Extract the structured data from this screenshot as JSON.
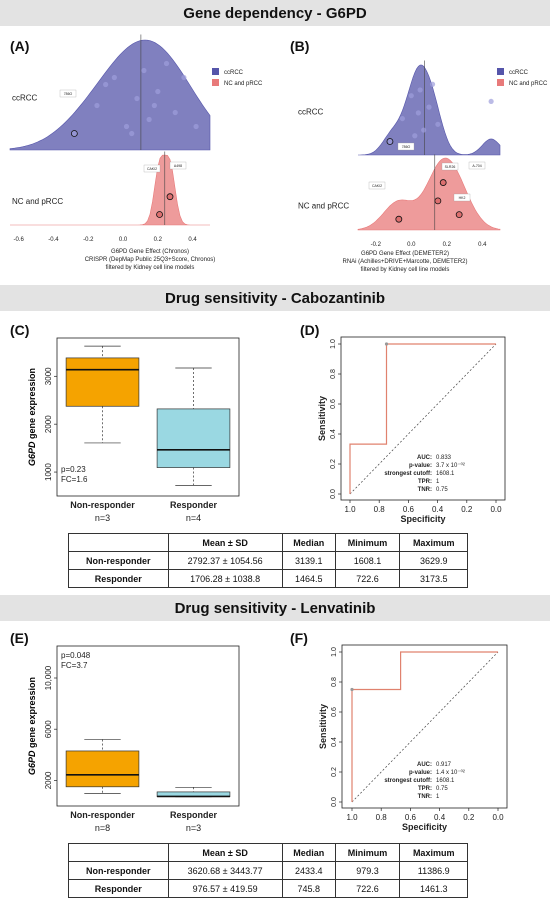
{
  "sections": [
    {
      "title": "Gene dependency - G6PD"
    },
    {
      "title": "Drug sensitivity - Cabozantinib"
    },
    {
      "title": "Drug sensitivity - Lenvatinib"
    }
  ],
  "panels": [
    "(A)",
    "(B)",
    "(C)",
    "(D)",
    "(E)",
    "(F)"
  ],
  "legend": {
    "cc": "ccRCC",
    "nc": "NC and pRCC",
    "cc_color": "#5555aa",
    "nc_color": "#e87a7a"
  },
  "captions": {
    "A": [
      "G6PD Gene Effect (Chronos)",
      "CRISPR (DepMap Public 25Q3+Score, Chronos)",
      "filtered by Kidney cell line models"
    ],
    "B": [
      "G6PD Gene Effect (DEMETER2)",
      "RNAi (Achilles+DRIVE+Marcotte, DEMETER2)",
      "filtered by Kidney cell line models"
    ]
  },
  "chart_data": [
    {
      "type": "density",
      "id": "A",
      "groups": [
        "ccRCC",
        "NC and pRCC"
      ],
      "xticks": [
        -0.6,
        -0.4,
        -0.2,
        0.0,
        0.2,
        0.4
      ],
      "xlim": [
        -0.65,
        0.5
      ],
      "xlabel": "G6PD Gene Effect (Chronos)",
      "point_labels": [
        "786O",
        "CAKI2",
        "A498"
      ],
      "series": [
        {
          "name": "ccRCC",
          "points": [
            -0.28,
            -0.15,
            -0.05,
            0.02,
            0.08,
            0.12,
            0.15,
            0.2,
            0.25,
            0.3,
            -0.1,
            0.05,
            0.18,
            0.35,
            0.42
          ]
        },
        {
          "name": "NC and pRCC",
          "points": [
            0.21,
            0.27
          ]
        }
      ]
    },
    {
      "type": "density",
      "id": "B",
      "groups": [
        "ccRCC",
        "NC and pRCC"
      ],
      "xticks": [
        -0.2,
        0.0,
        0.2,
        0.4
      ],
      "xlim": [
        -0.3,
        0.5
      ],
      "xlabel": "G6PD Gene Effect (DEMETER2)",
      "point_labels": [
        "786O",
        "CAKI2",
        "SLR26",
        "A-704",
        "HK2"
      ],
      "series": [
        {
          "name": "ccRCC",
          "points": [
            -0.12,
            -0.05,
            0.0,
            0.02,
            0.04,
            0.05,
            0.07,
            0.1,
            0.12,
            0.15,
            0.45
          ]
        },
        {
          "name": "NC and pRCC",
          "points": [
            -0.07,
            0.15,
            0.18,
            0.27
          ]
        }
      ]
    },
    {
      "type": "boxplot",
      "id": "C",
      "ylabel_italic": "G6PD",
      "ylabel": "gene expression",
      "yticks": [
        1000,
        2000,
        3000
      ],
      "ylim": [
        500,
        3800
      ],
      "categories": [
        "Non-responder",
        "Responder"
      ],
      "n_labels": [
        "n=3",
        "n=4"
      ],
      "boxes": [
        {
          "name": "Non-responder",
          "min": 1608.1,
          "q1": 2374,
          "median": 3139.1,
          "q3": 3384,
          "max": 3629.9,
          "color": "#f5a300"
        },
        {
          "name": "Responder",
          "min": 722.6,
          "q1": 1094,
          "median": 1464.5,
          "q3": 2319,
          "max": 3173.5,
          "color": "#9ad8e2"
        }
      ],
      "stats": [
        "p=0.23",
        "FC=1.6"
      ]
    },
    {
      "type": "line",
      "id": "D",
      "xlabel": "Specificity",
      "ylabel": "Sensitivity",
      "xticks": [
        1.0,
        0.8,
        0.6,
        0.4,
        0.2,
        0.0
      ],
      "yticks": [
        0.0,
        0.2,
        0.4,
        0.6,
        0.8,
        1.0
      ],
      "xlim": [
        1.0,
        0.0
      ],
      "ylim": [
        0,
        1
      ],
      "roc": [
        [
          1.0,
          0.0
        ],
        [
          1.0,
          0.333
        ],
        [
          0.75,
          0.333
        ],
        [
          0.75,
          1.0
        ],
        [
          0.0,
          1.0
        ]
      ],
      "cutoff_point": [
        0.75,
        1.0
      ],
      "stats": [
        {
          "k": "AUC:",
          "v": "0.833"
        },
        {
          "k": "p-value:",
          "v": "3.7 x 10⁻⁰²"
        },
        {
          "k": "strongest cutoff:",
          "v": "1608.1"
        },
        {
          "k": "TPR:",
          "v": "1"
        },
        {
          "k": "TNR:",
          "v": "0.75"
        }
      ]
    },
    {
      "type": "boxplot",
      "id": "E",
      "ylabel_italic": "G6PD",
      "ylabel": "gene expression",
      "yticks": [
        2000,
        6000,
        10000
      ],
      "ytick_labels": [
        "2000",
        "6000",
        "10,000"
      ],
      "ylim": [
        0,
        12500
      ],
      "categories": [
        "Non-responder",
        "Responder"
      ],
      "n_labels": [
        "n=8",
        "n=3"
      ],
      "boxes": [
        {
          "name": "Non-responder",
          "min": 979.3,
          "q1": 1500,
          "median": 2433.4,
          "q3": 4300,
          "max": 5200,
          "color": "#f5a300"
        },
        {
          "name": "Responder",
          "min": 722.6,
          "q1": 730,
          "median": 745.8,
          "q3": 1100,
          "max": 1461.3,
          "color": "#9ad8e2"
        }
      ],
      "stats": [
        "p=0.048",
        "FC=3.7"
      ]
    },
    {
      "type": "line",
      "id": "F",
      "xlabel": "Specificity",
      "ylabel": "Sensitivity",
      "xticks": [
        1.0,
        0.8,
        0.6,
        0.4,
        0.2,
        0.0
      ],
      "yticks": [
        0.0,
        0.2,
        0.4,
        0.6,
        0.8,
        1.0
      ],
      "xlim": [
        1.0,
        0.0
      ],
      "ylim": [
        0,
        1
      ],
      "roc": [
        [
          1.0,
          0.0
        ],
        [
          1.0,
          0.75
        ],
        [
          0.667,
          0.75
        ],
        [
          0.667,
          1.0
        ],
        [
          0.0,
          1.0
        ]
      ],
      "cutoff_point": [
        1.0,
        0.75
      ],
      "stats": [
        {
          "k": "AUC:",
          "v": "0.917"
        },
        {
          "k": "p-value:",
          "v": "1.4 x 10⁻⁰²"
        },
        {
          "k": "strongest cutoff:",
          "v": "1608.1"
        },
        {
          "k": "TPR:",
          "v": "0.75"
        },
        {
          "k": "TNR:",
          "v": "1"
        }
      ]
    }
  ],
  "tables": {
    "cabo": {
      "headers": [
        "",
        "Mean ± SD",
        "Median",
        "Minimum",
        "Maximum"
      ],
      "rows": [
        [
          "Non-responder",
          "2792.37 ± 1054.56",
          "3139.1",
          "1608.1",
          "3629.9"
        ],
        [
          "Responder",
          "1706.28 ± 1038.8",
          "1464.5",
          "722.6",
          "3173.5"
        ]
      ]
    },
    "lenva": {
      "headers": [
        "",
        "Mean ± SD",
        "Median",
        "Minimum",
        "Maximum"
      ],
      "rows": [
        [
          "Non-responder",
          "3620.68 ± 3443.77",
          "2433.4",
          "979.3",
          "11386.9"
        ],
        [
          "Responder",
          "976.57 ± 419.59",
          "745.8",
          "722.6",
          "1461.3"
        ]
      ]
    }
  }
}
